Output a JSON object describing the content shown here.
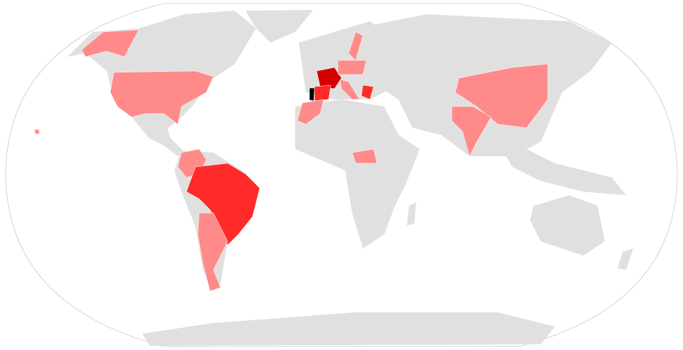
{
  "map": {
    "projection": "Robinson",
    "colors": {
      "ocean": "#ffffff",
      "outline": "#c8c8c8",
      "no_data": "#e0e0e0",
      "low": "#ff8a8a",
      "medium": "#ff2a2a",
      "high": "#d40000",
      "max": "#000000"
    },
    "regions": [
      {
        "id": "usa",
        "level": "low"
      },
      {
        "id": "alaska",
        "level": "low"
      },
      {
        "id": "hawaii",
        "level": "low"
      },
      {
        "id": "colombia-venezuela",
        "level": "low"
      },
      {
        "id": "brazil",
        "level": "medium"
      },
      {
        "id": "argentina-chile",
        "level": "low"
      },
      {
        "id": "france",
        "level": "high"
      },
      {
        "id": "spain",
        "level": "medium"
      },
      {
        "id": "portugal",
        "level": "max"
      },
      {
        "id": "morocco",
        "level": "low"
      },
      {
        "id": "scandinavia",
        "level": "low"
      },
      {
        "id": "central-europe",
        "level": "low"
      },
      {
        "id": "italy",
        "level": "low"
      },
      {
        "id": "greece",
        "level": "medium"
      },
      {
        "id": "central-african-republic",
        "level": "low"
      },
      {
        "id": "china",
        "level": "low"
      },
      {
        "id": "india",
        "level": "low"
      }
    ]
  }
}
